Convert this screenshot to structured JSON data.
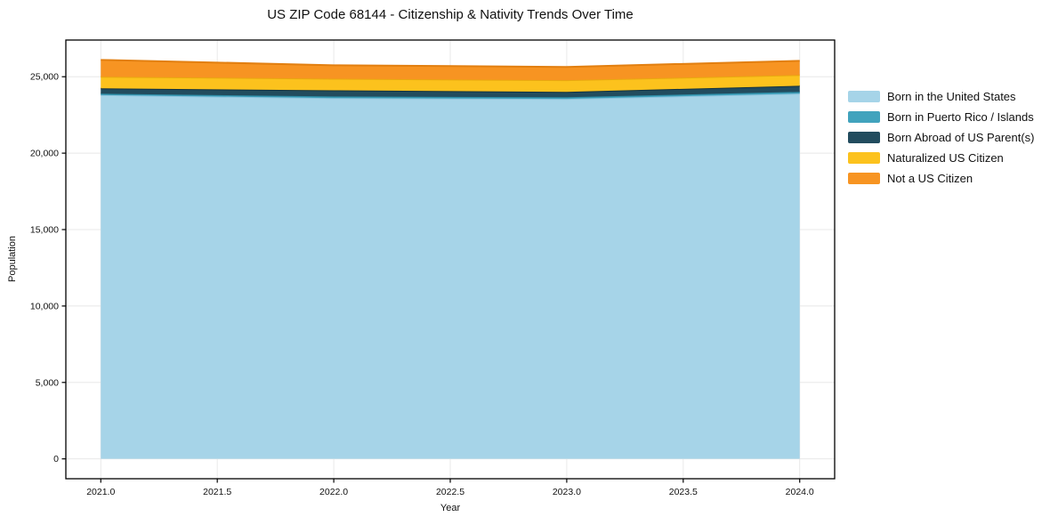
{
  "chart_data": {
    "type": "area",
    "stacked": true,
    "title": "US ZIP Code 68144 - Citizenship & Nativity Trends Over Time",
    "xlabel": "Year",
    "ylabel": "Population",
    "x": [
      2021,
      2022,
      2023,
      2024
    ],
    "series": [
      {
        "name": "Born in the United States",
        "color": "#a6d4e8",
        "edge": "#8cc3dd",
        "values": [
          23800,
          23600,
          23550,
          23900
        ]
      },
      {
        "name": "Born in Puerto Rico / Islands",
        "color": "#41a3bd",
        "edge": "#2e8ca6",
        "values": [
          90,
          110,
          110,
          110
        ]
      },
      {
        "name": "Born Abroad of US Parent(s)",
        "color": "#224c5e",
        "edge": "#14333f",
        "values": [
          350,
          400,
          350,
          400
        ]
      },
      {
        "name": "Naturalized US Citizen",
        "color": "#fcc21d",
        "edge": "#e9a90f",
        "values": [
          760,
          760,
          760,
          700
        ]
      },
      {
        "name": "Not a US Citizen",
        "color": "#f79422",
        "edge": "#e27f10",
        "values": [
          1100,
          880,
          870,
          930
        ]
      }
    ],
    "xlim": [
      2020.85,
      2024.15
    ],
    "ylim": [
      -1300,
      27400
    ],
    "xticks": {
      "values": [
        2021.0,
        2021.5,
        2022.0,
        2022.5,
        2023.0,
        2023.5,
        2024.0
      ],
      "labels": [
        "2021.0",
        "2021.5",
        "2022.0",
        "2022.5",
        "2023.0",
        "2023.5",
        "2024.0"
      ]
    },
    "yticks": {
      "values": [
        0,
        5000,
        10000,
        15000,
        20000,
        25000
      ],
      "labels": [
        "0",
        "5,000",
        "10,000",
        "15,000",
        "20,000",
        "25,000"
      ]
    },
    "grid": true,
    "grid_color": "#e8e8e8",
    "spine_color": "#000000",
    "legend_position": "right"
  }
}
